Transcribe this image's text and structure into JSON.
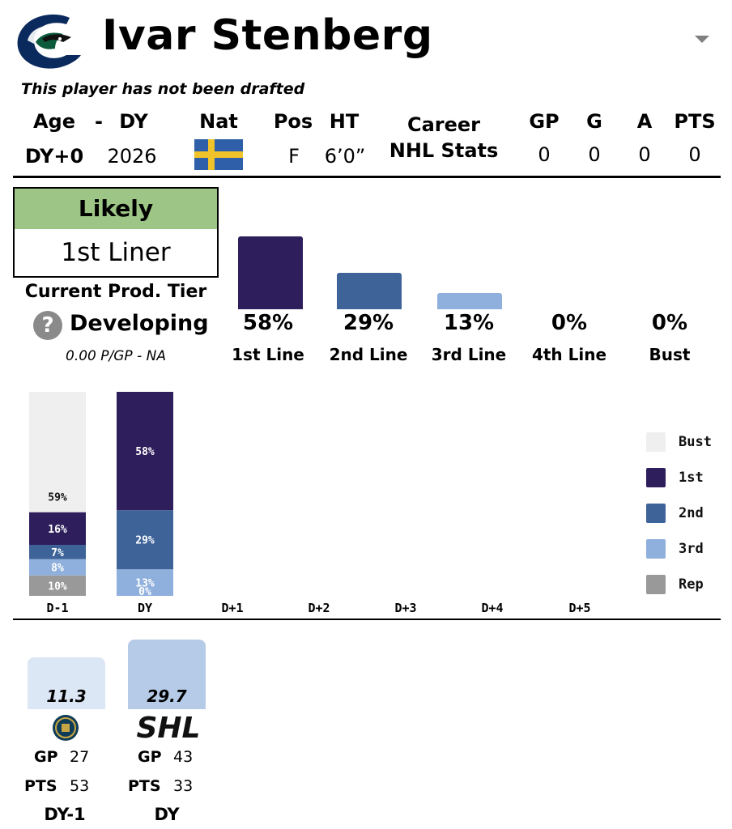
{
  "header": {
    "player_name": "Ivar Stenberg",
    "draft_note": "This player has not been drafted"
  },
  "bio": {
    "age_label": "Age",
    "dash": "-",
    "dy_label": "DY",
    "nat_label": "Nat",
    "pos_label": "Pos",
    "ht_label": "HT",
    "age_value": "DY+0",
    "dy_value": "2026",
    "nationality": "Sweden",
    "pos_value": "F",
    "ht_value": "6’0”"
  },
  "career": {
    "label_line1": "Career",
    "label_line2": "NHL Stats",
    "columns": [
      {
        "label": "GP",
        "value": "0"
      },
      {
        "label": "G",
        "value": "0"
      },
      {
        "label": "A",
        "value": "0"
      },
      {
        "label": "PTS",
        "value": "0"
      }
    ]
  },
  "likely": {
    "heading": "Likely",
    "value": "1st Liner"
  },
  "production": {
    "label": "Current Prod. Tier",
    "help_glyph": "?",
    "tier": "Developing",
    "ppg": "0.00 P/GP - NA"
  },
  "projection": [
    {
      "label": "1st Line",
      "pct": "58%",
      "value": 58,
      "color": "#2e1f5c"
    },
    {
      "label": "2nd Line",
      "pct": "29%",
      "value": 29,
      "color": "#3e6399"
    },
    {
      "label": "3rd Line",
      "pct": "13%",
      "value": 13,
      "color": "#8fb0dc"
    },
    {
      "label": "4th Line",
      "pct": "0%",
      "value": 0,
      "color": "#9a9a9a"
    },
    {
      "label": "Bust",
      "pct": "0%",
      "value": 0,
      "color": "#efefef"
    }
  ],
  "chart_data": {
    "type": "bar",
    "stacked": true,
    "categories": [
      "D-1",
      "DY",
      "D+1",
      "D+2",
      "D+3",
      "D+4",
      "D+5"
    ],
    "series": [
      {
        "name": "Rep",
        "color": "#999999",
        "values": [
          10,
          0,
          null,
          null,
          null,
          null,
          null
        ]
      },
      {
        "name": "3rd",
        "color": "#8fb0dc",
        "values": [
          8,
          13,
          null,
          null,
          null,
          null,
          null
        ]
      },
      {
        "name": "2nd",
        "color": "#3e6399",
        "values": [
          7,
          29,
          null,
          null,
          null,
          null,
          null
        ]
      },
      {
        "name": "1st",
        "color": "#2e1f5c",
        "values": [
          16,
          58,
          null,
          null,
          null,
          null,
          null
        ]
      },
      {
        "name": "Bust",
        "color": "#efefef",
        "values": [
          59,
          0,
          null,
          null,
          null,
          null,
          null
        ]
      }
    ],
    "legend": [
      "Bust",
      "1st",
      "2nd",
      "3rd",
      "Rep"
    ],
    "legend_position": "right",
    "ylim": [
      0,
      100
    ]
  },
  "leagues": [
    {
      "value": "11.3",
      "gp_label": "GP",
      "gp": "27",
      "pts_label": "PTS",
      "pts": "53",
      "season": "DY-1",
      "color": "#dbe7f4",
      "level": 0.38
    },
    {
      "value": "29.7",
      "gp_label": "GP",
      "gp": "43",
      "pts_label": "PTS",
      "pts": "33",
      "season": "DY",
      "color": "#b6cbe7",
      "level": 1.0,
      "logo_text": "SHL"
    }
  ]
}
